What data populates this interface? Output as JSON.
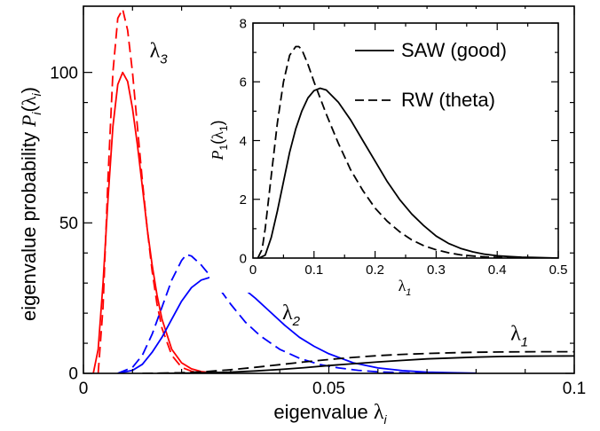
{
  "chart_data": [
    {
      "type": "line",
      "xlabel": "eigenvalue",
      "xlabel_symbol": "λ",
      "xlabel_sub": "i",
      "ylabel": "eigenvalue probability",
      "ylabel_symbol_P": "P",
      "ylabel_sub": "i",
      "ylabel_paren_sym": "λ",
      "xlim": [
        0,
        0.1
      ],
      "ylim": [
        0,
        122
      ],
      "x_ticks": [
        {
          "v": 0,
          "label": "0"
        },
        {
          "v": 0.05,
          "label": "0.05"
        },
        {
          "v": 0.1,
          "label": "0.1"
        }
      ],
      "y_ticks": [
        {
          "v": 0,
          "label": "0"
        },
        {
          "v": 50,
          "label": "50"
        },
        {
          "v": 100,
          "label": "100"
        }
      ],
      "grid": false,
      "annotations": [
        {
          "text": "λ",
          "sub": "3",
          "x": 0.0135,
          "y": 105
        },
        {
          "text": "λ",
          "sub": "2",
          "x": 0.0405,
          "y": 18
        },
        {
          "text": "λ",
          "sub": "1",
          "x": 0.087,
          "y": 11
        }
      ],
      "series": [
        {
          "color": "#ff0000",
          "dash": "solid",
          "x": [
            0.002,
            0.003,
            0.004,
            0.005,
            0.006,
            0.007,
            0.008,
            0.009,
            0.01,
            0.011,
            0.012,
            0.013,
            0.014,
            0.015,
            0.016,
            0.018,
            0.02,
            0.022,
            0.024,
            0.026,
            0.028,
            0.03
          ],
          "y": [
            0,
            8,
            30,
            58,
            82,
            96,
            100,
            97,
            88,
            76,
            62,
            48,
            36,
            26,
            18,
            8,
            3.5,
            1.5,
            0.6,
            0.2,
            0.05,
            0
          ]
        },
        {
          "color": "#ff0000",
          "dash": "dashed",
          "x": [
            0.003,
            0.004,
            0.005,
            0.006,
            0.007,
            0.008,
            0.009,
            0.01,
            0.011,
            0.012,
            0.013,
            0.014,
            0.015,
            0.016,
            0.018,
            0.02,
            0.022,
            0.024,
            0.026,
            0.028
          ],
          "y": [
            0,
            22,
            65,
            100,
            118,
            121,
            114,
            100,
            82,
            64,
            48,
            34,
            23,
            15,
            6,
            2,
            0.7,
            0.2,
            0.05,
            0
          ]
        },
        {
          "color": "#0000ff",
          "dash": "solid",
          "x": [
            0.007,
            0.01,
            0.012,
            0.014,
            0.016,
            0.018,
            0.02,
            0.022,
            0.024,
            0.026,
            0.028,
            0.03,
            0.032,
            0.035,
            0.038,
            0.041,
            0.044,
            0.047,
            0.05,
            0.055,
            0.06,
            0.065,
            0.07,
            0.075,
            0.08
          ],
          "y": [
            0,
            1,
            3,
            7,
            12,
            18,
            24,
            28.5,
            31,
            32,
            32,
            31,
            29,
            25,
            20.5,
            16,
            12,
            9,
            6.5,
            3.5,
            1.8,
            0.9,
            0.4,
            0.2,
            0.05
          ]
        },
        {
          "color": "#0000ff",
          "dash": "dashed",
          "x": [
            0.007,
            0.01,
            0.012,
            0.014,
            0.016,
            0.018,
            0.02,
            0.021,
            0.022,
            0.024,
            0.026,
            0.028,
            0.03,
            0.033,
            0.036,
            0.04,
            0.044,
            0.048,
            0.052,
            0.056,
            0.06,
            0.065,
            0.07,
            0.075
          ],
          "y": [
            0,
            2,
            6,
            13,
            22,
            31,
            37.5,
            39.5,
            39,
            36,
            32,
            27.5,
            23,
            17,
            12.5,
            8,
            5,
            3,
            1.8,
            1,
            0.5,
            0.2,
            0.08,
            0
          ]
        },
        {
          "color": "#000000",
          "dash": "solid",
          "x": [
            0.015,
            0.02,
            0.025,
            0.03,
            0.035,
            0.04,
            0.045,
            0.05,
            0.055,
            0.06,
            0.065,
            0.07,
            0.075,
            0.08,
            0.085,
            0.09,
            0.095,
            0.1
          ],
          "y": [
            0,
            0.05,
            0.2,
            0.4,
            0.8,
            1.3,
            1.9,
            2.6,
            3.2,
            3.8,
            4.3,
            4.8,
            5.1,
            5.4,
            5.6,
            5.7,
            5.75,
            5.78
          ]
        },
        {
          "color": "#000000",
          "dash": "dashed",
          "x": [
            0.012,
            0.015,
            0.02,
            0.025,
            0.03,
            0.035,
            0.04,
            0.045,
            0.05,
            0.055,
            0.06,
            0.065,
            0.07,
            0.075,
            0.08,
            0.085,
            0.09,
            0.095,
            0.1
          ],
          "y": [
            0,
            0.05,
            0.2,
            0.6,
            1.2,
            2.0,
            2.9,
            3.8,
            4.6,
            5.3,
            5.9,
            6.3,
            6.6,
            6.85,
            7.0,
            7.1,
            7.15,
            7.18,
            7.2
          ]
        }
      ]
    },
    {
      "type": "line",
      "xlabel_symbol": "λ",
      "xlabel_sub": "1",
      "ylabel_P": "P",
      "ylabel_sub": "1",
      "ylabel_paren_sym": "λ",
      "ylabel_paren_sub": "1",
      "xlim": [
        0,
        0.5
      ],
      "ylim": [
        0,
        8
      ],
      "x_ticks": [
        {
          "v": 0,
          "label": "0"
        },
        {
          "v": 0.1,
          "label": "0.1"
        },
        {
          "v": 0.2,
          "label": "0.2"
        },
        {
          "v": 0.3,
          "label": "0.3"
        },
        {
          "v": 0.4,
          "label": "0.4"
        },
        {
          "v": 0.5,
          "label": "0.5"
        }
      ],
      "y_ticks": [
        {
          "v": 0,
          "label": "0"
        },
        {
          "v": 2,
          "label": "2"
        },
        {
          "v": 4,
          "label": "4"
        },
        {
          "v": 6,
          "label": "6"
        },
        {
          "v": 8,
          "label": "8"
        }
      ],
      "grid": false,
      "legend_position": "top-right",
      "legend": [
        {
          "name": "SAW (good)",
          "dash": "solid"
        },
        {
          "name": "RW (theta)",
          "dash": "dashed"
        }
      ],
      "series": [
        {
          "name": "SAW (good)",
          "color": "#000000",
          "dash": "solid",
          "x": [
            0.01,
            0.02,
            0.03,
            0.04,
            0.05,
            0.06,
            0.07,
            0.08,
            0.09,
            0.1,
            0.11,
            0.12,
            0.14,
            0.16,
            0.18,
            0.2,
            0.22,
            0.24,
            0.26,
            0.28,
            0.3,
            0.32,
            0.34,
            0.36,
            0.38,
            0.4,
            0.42,
            0.44,
            0.46,
            0.48,
            0.5
          ],
          "y": [
            0,
            0.1,
            0.7,
            1.6,
            2.6,
            3.6,
            4.4,
            5.0,
            5.45,
            5.7,
            5.78,
            5.72,
            5.3,
            4.7,
            4.0,
            3.3,
            2.6,
            2.0,
            1.5,
            1.1,
            0.75,
            0.5,
            0.33,
            0.21,
            0.13,
            0.08,
            0.05,
            0.03,
            0.02,
            0.01,
            0
          ]
        },
        {
          "name": "RW (theta)",
          "color": "#000000",
          "dash": "dashed",
          "x": [
            0.008,
            0.015,
            0.02,
            0.03,
            0.04,
            0.05,
            0.06,
            0.07,
            0.075,
            0.08,
            0.09,
            0.1,
            0.12,
            0.14,
            0.16,
            0.18,
            0.2,
            0.22,
            0.24,
            0.26,
            0.28,
            0.3,
            0.32,
            0.34,
            0.36,
            0.38,
            0.4,
            0.44,
            0.48,
            0.5
          ],
          "y": [
            0,
            0.3,
            1.0,
            2.8,
            4.6,
            6.0,
            6.9,
            7.2,
            7.2,
            7.1,
            6.6,
            6.0,
            4.9,
            3.9,
            3.0,
            2.3,
            1.7,
            1.25,
            0.9,
            0.62,
            0.42,
            0.28,
            0.18,
            0.11,
            0.07,
            0.04,
            0.025,
            0.01,
            0,
            0
          ]
        }
      ]
    }
  ]
}
